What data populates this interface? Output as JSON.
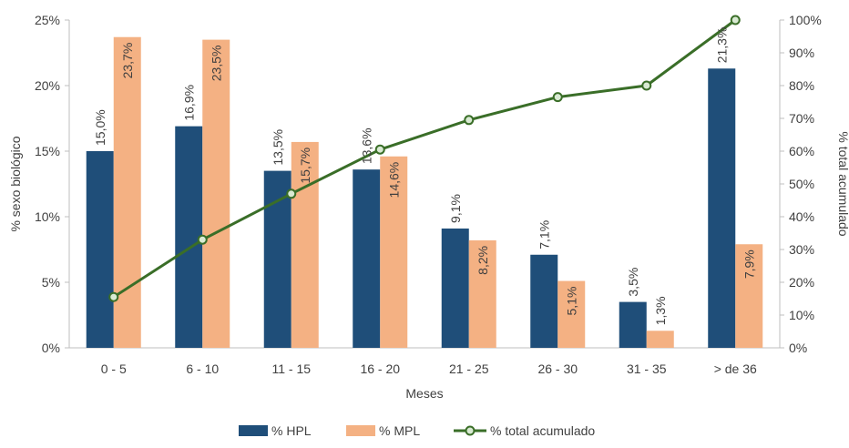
{
  "chart_data": {
    "type": "bar",
    "categories": [
      "0 - 5",
      "6 - 10",
      "11 - 15",
      "16 - 20",
      "21 - 25",
      "26 - 30",
      "31 - 35",
      "> de 36"
    ],
    "series": [
      {
        "name": "% HPL",
        "kind": "bar",
        "axis": "left",
        "color": "#1f4e79",
        "values": [
          15.0,
          16.9,
          13.5,
          13.6,
          9.1,
          7.1,
          3.5,
          21.3
        ],
        "labels": [
          "15,0%",
          "16,9%",
          "13,5%",
          "13,6%",
          "9,1%",
          "7,1%",
          "3,5%",
          "21,3%"
        ]
      },
      {
        "name": "% MPL",
        "kind": "bar",
        "axis": "left",
        "color": "#f4b183",
        "values": [
          23.7,
          23.5,
          15.7,
          14.6,
          8.2,
          5.1,
          1.3,
          7.9
        ],
        "labels": [
          "23,7%",
          "23,5%",
          "15,7%",
          "14,6%",
          "8,2%",
          "5,1%",
          "1,3%",
          "7,9%"
        ]
      },
      {
        "name": "% total acumulado",
        "kind": "line",
        "axis": "right",
        "color": "#3a6e28",
        "values": [
          15.5,
          33.0,
          47.0,
          60.5,
          69.5,
          76.5,
          80.0,
          100.0
        ]
      }
    ],
    "xlabel": "Meses",
    "ylabel": "% sexo biológico",
    "y2label": "% total acumulado",
    "ylim": [
      0,
      25
    ],
    "y2lim": [
      0,
      100
    ],
    "yticks": [
      "0%",
      "5%",
      "10%",
      "15%",
      "20%",
      "25%"
    ],
    "y2ticks": [
      "0%",
      "10%",
      "20%",
      "30%",
      "40%",
      "50%",
      "60%",
      "70%",
      "80%",
      "90%",
      "100%"
    ],
    "grid": false,
    "legend": "bottom"
  }
}
